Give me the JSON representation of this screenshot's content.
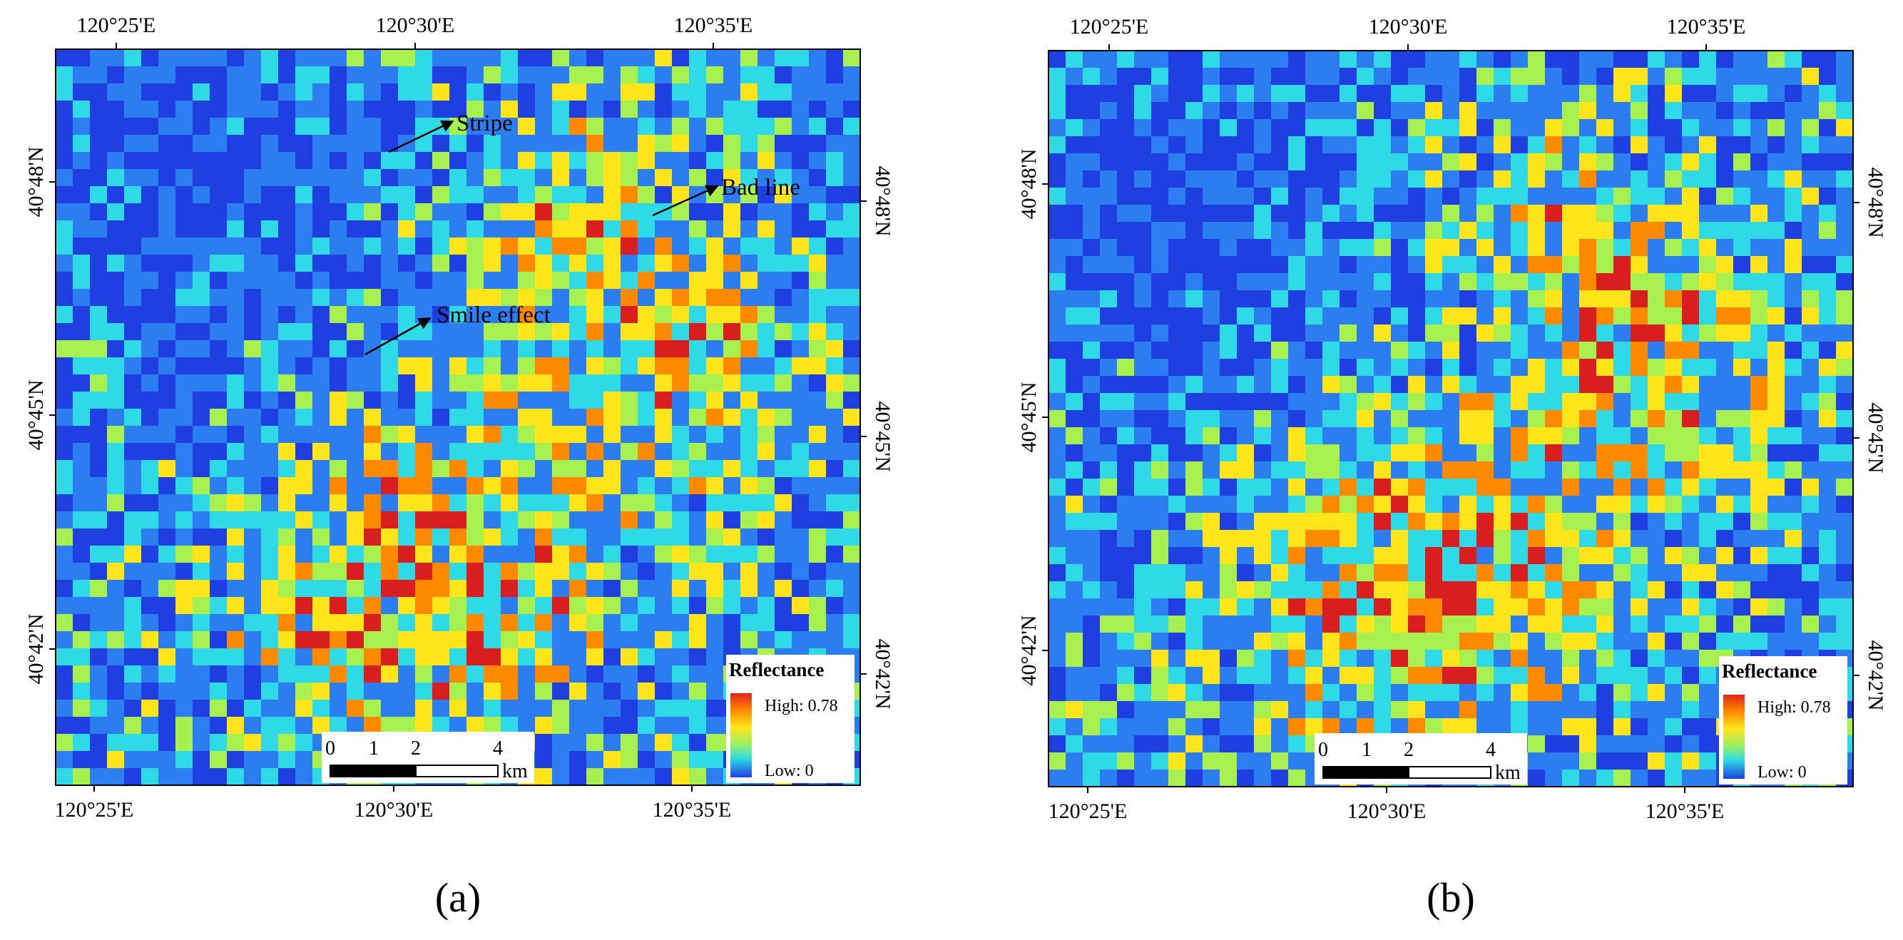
{
  "figure": {
    "panels": [
      {
        "id": "a",
        "caption": "(a)",
        "top_ticks": [
          "120°25'E",
          "120°30'E",
          "120°35'E"
        ],
        "bottom_ticks": [
          "120°25'E",
          "120°30'E",
          "120°35'E"
        ],
        "left_ticks": [
          "40°48'N",
          "40°45'N",
          "40°42'N"
        ],
        "right_ticks": [
          "40°48'N",
          "40°45'N",
          "40°42'N"
        ],
        "annotations": [
          "Stripe",
          "Bad line",
          "Smile effect"
        ],
        "legend": {
          "title": "Reflectance",
          "high": "High: 0.78",
          "low": "Low:  0"
        },
        "scalebar": {
          "ticks": [
            "0",
            "1",
            "2",
            "4"
          ],
          "unit": "km"
        }
      },
      {
        "id": "b",
        "caption": "(b)",
        "top_ticks": [
          "120°25'E",
          "120°30'E",
          "120°35'E"
        ],
        "bottom_ticks": [
          "120°25'E",
          "120°30'E",
          "120°35'E"
        ],
        "left_ticks": [
          "40°48'N",
          "40°45'N",
          "40°42'N"
        ],
        "right_ticks": [
          "40°48'N",
          "40°45'N",
          "40°42'N"
        ],
        "annotations": [],
        "legend": {
          "title": "Reflectance",
          "high": "High: 0.78",
          "low": "Low:  0"
        },
        "scalebar": {
          "ticks": [
            "0",
            "1",
            "2",
            "4"
          ],
          "unit": "km"
        }
      }
    ],
    "colors": {
      "ramp": [
        "#d81e1e",
        "#ff8a00",
        "#ffe51a",
        "#a8f050",
        "#2fd9e6",
        "#2b7df0",
        "#1f3fe0"
      ],
      "low": "#2a4ad8",
      "high": "#e0241c"
    }
  }
}
